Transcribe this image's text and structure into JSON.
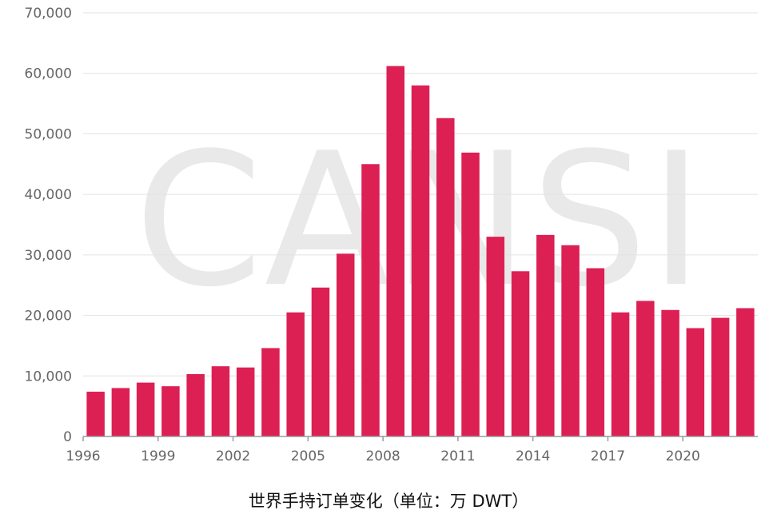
{
  "chart_data": {
    "type": "bar",
    "caption": "世界手持订单变化（单位：万 DWT）",
    "watermark": "CANSI",
    "categories": [
      "1996",
      "1997",
      "1998",
      "1999",
      "2000",
      "2001",
      "2002",
      "2003",
      "2004",
      "2005",
      "2006",
      "2007",
      "2008",
      "2009",
      "2010",
      "2011",
      "2012",
      "2013",
      "2014",
      "2015",
      "2016",
      "2017",
      "2018",
      "2019",
      "2020",
      "2021",
      "2022"
    ],
    "x_tick_labels": [
      "1996",
      "1999",
      "2002",
      "2005",
      "2008",
      "2011",
      "2014",
      "2017",
      "2020"
    ],
    "y_tick_labels": [
      "0",
      "10,000",
      "20,000",
      "30,000",
      "40,000",
      "50,000",
      "60,000",
      "70,000"
    ],
    "y_ticks": [
      0,
      10000,
      20000,
      30000,
      40000,
      50000,
      60000,
      70000
    ],
    "values": [
      7400,
      8000,
      8900,
      8300,
      10300,
      11600,
      11400,
      14600,
      20500,
      24600,
      30200,
      45000,
      61200,
      58000,
      52600,
      46900,
      33000,
      27300,
      33300,
      31600,
      27800,
      20500,
      22400,
      20900,
      17900,
      19600,
      21200
    ],
    "ylim": [
      0,
      70000
    ],
    "grid": true,
    "bar_color": "#dc2053"
  }
}
